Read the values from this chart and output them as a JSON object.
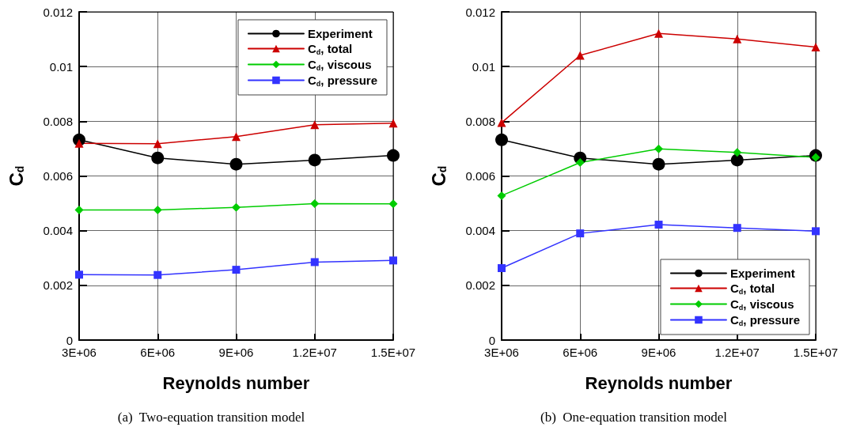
{
  "chart_data": [
    {
      "type": "line",
      "title": "(a)  Two-equation transition model",
      "xlabel": "Reynolds number",
      "ylabel": "C$_{d}$",
      "x": [
        3000000,
        6000000,
        9000000,
        12000000,
        15000000
      ],
      "xlim": [
        3000000,
        15000000
      ],
      "xticks": [
        {
          "value": 3000000,
          "label": "3E+06"
        },
        {
          "value": 6000000,
          "label": "6E+06"
        },
        {
          "value": 9000000,
          "label": "9E+06"
        },
        {
          "value": 12000000,
          "label": "1.2E+07"
        },
        {
          "value": 15000000,
          "label": "1.5E+07"
        }
      ],
      "ylim": [
        0,
        0.012
      ],
      "yticks": [
        0,
        0.002,
        0.004,
        0.006,
        0.008,
        0.01,
        0.012
      ],
      "grid": true,
      "legend": "top right",
      "line_style": "solid",
      "series": [
        {
          "name": "Experiment",
          "color": "#000000",
          "marker": "circle",
          "values": [
            0.00732,
            0.00666,
            0.00643,
            0.00658,
            0.00675
          ]
        },
        {
          "name": "C$_{d}$, total",
          "color": "#cc0000",
          "marker": "triangle",
          "values": [
            0.00719,
            0.00718,
            0.00744,
            0.00787,
            0.00793
          ]
        },
        {
          "name": "C$_{d}$, viscous",
          "color": "#00cc00",
          "marker": "diamond",
          "values": [
            0.00476,
            0.00476,
            0.00485,
            0.00499,
            0.00498
          ]
        },
        {
          "name": "C$_{d}$, pressure",
          "color": "#3333ff",
          "marker": "square",
          "values": [
            0.00239,
            0.00238,
            0.00257,
            0.00285,
            0.00291
          ]
        }
      ]
    },
    {
      "type": "line",
      "title": "(b)  One-equation transition model",
      "xlabel": "Reynolds number",
      "ylabel": "C$_{d}$",
      "x": [
        3000000,
        6000000,
        9000000,
        12000000,
        15000000
      ],
      "xlim": [
        3000000,
        15000000
      ],
      "xticks": [
        {
          "value": 3000000,
          "label": "3E+06"
        },
        {
          "value": 6000000,
          "label": "6E+06"
        },
        {
          "value": 9000000,
          "label": "9E+06"
        },
        {
          "value": 12000000,
          "label": "1.2E+07"
        },
        {
          "value": 15000000,
          "label": "1.5E+07"
        }
      ],
      "ylim": [
        0,
        0.012
      ],
      "yticks": [
        0,
        0.002,
        0.004,
        0.006,
        0.008,
        0.01,
        0.012
      ],
      "grid": true,
      "legend": "bottom right",
      "line_style": "solid",
      "series": [
        {
          "name": "Experiment",
          "color": "#000000",
          "marker": "circle",
          "values": [
            0.00732,
            0.00666,
            0.00643,
            0.00658,
            0.00675
          ]
        },
        {
          "name": "C$_{d}$, total",
          "color": "#cc0000",
          "marker": "triangle",
          "values": [
            0.00795,
            0.01041,
            0.01121,
            0.01101,
            0.01071
          ]
        },
        {
          "name": "C$_{d}$, viscous",
          "color": "#00cc00",
          "marker": "diamond",
          "values": [
            0.00528,
            0.00649,
            0.00699,
            0.00686,
            0.00668
          ]
        },
        {
          "name": "C$_{d}$, pressure",
          "color": "#3333ff",
          "marker": "square",
          "values": [
            0.00263,
            0.0039,
            0.00422,
            0.0041,
            0.00398
          ]
        }
      ]
    }
  ]
}
